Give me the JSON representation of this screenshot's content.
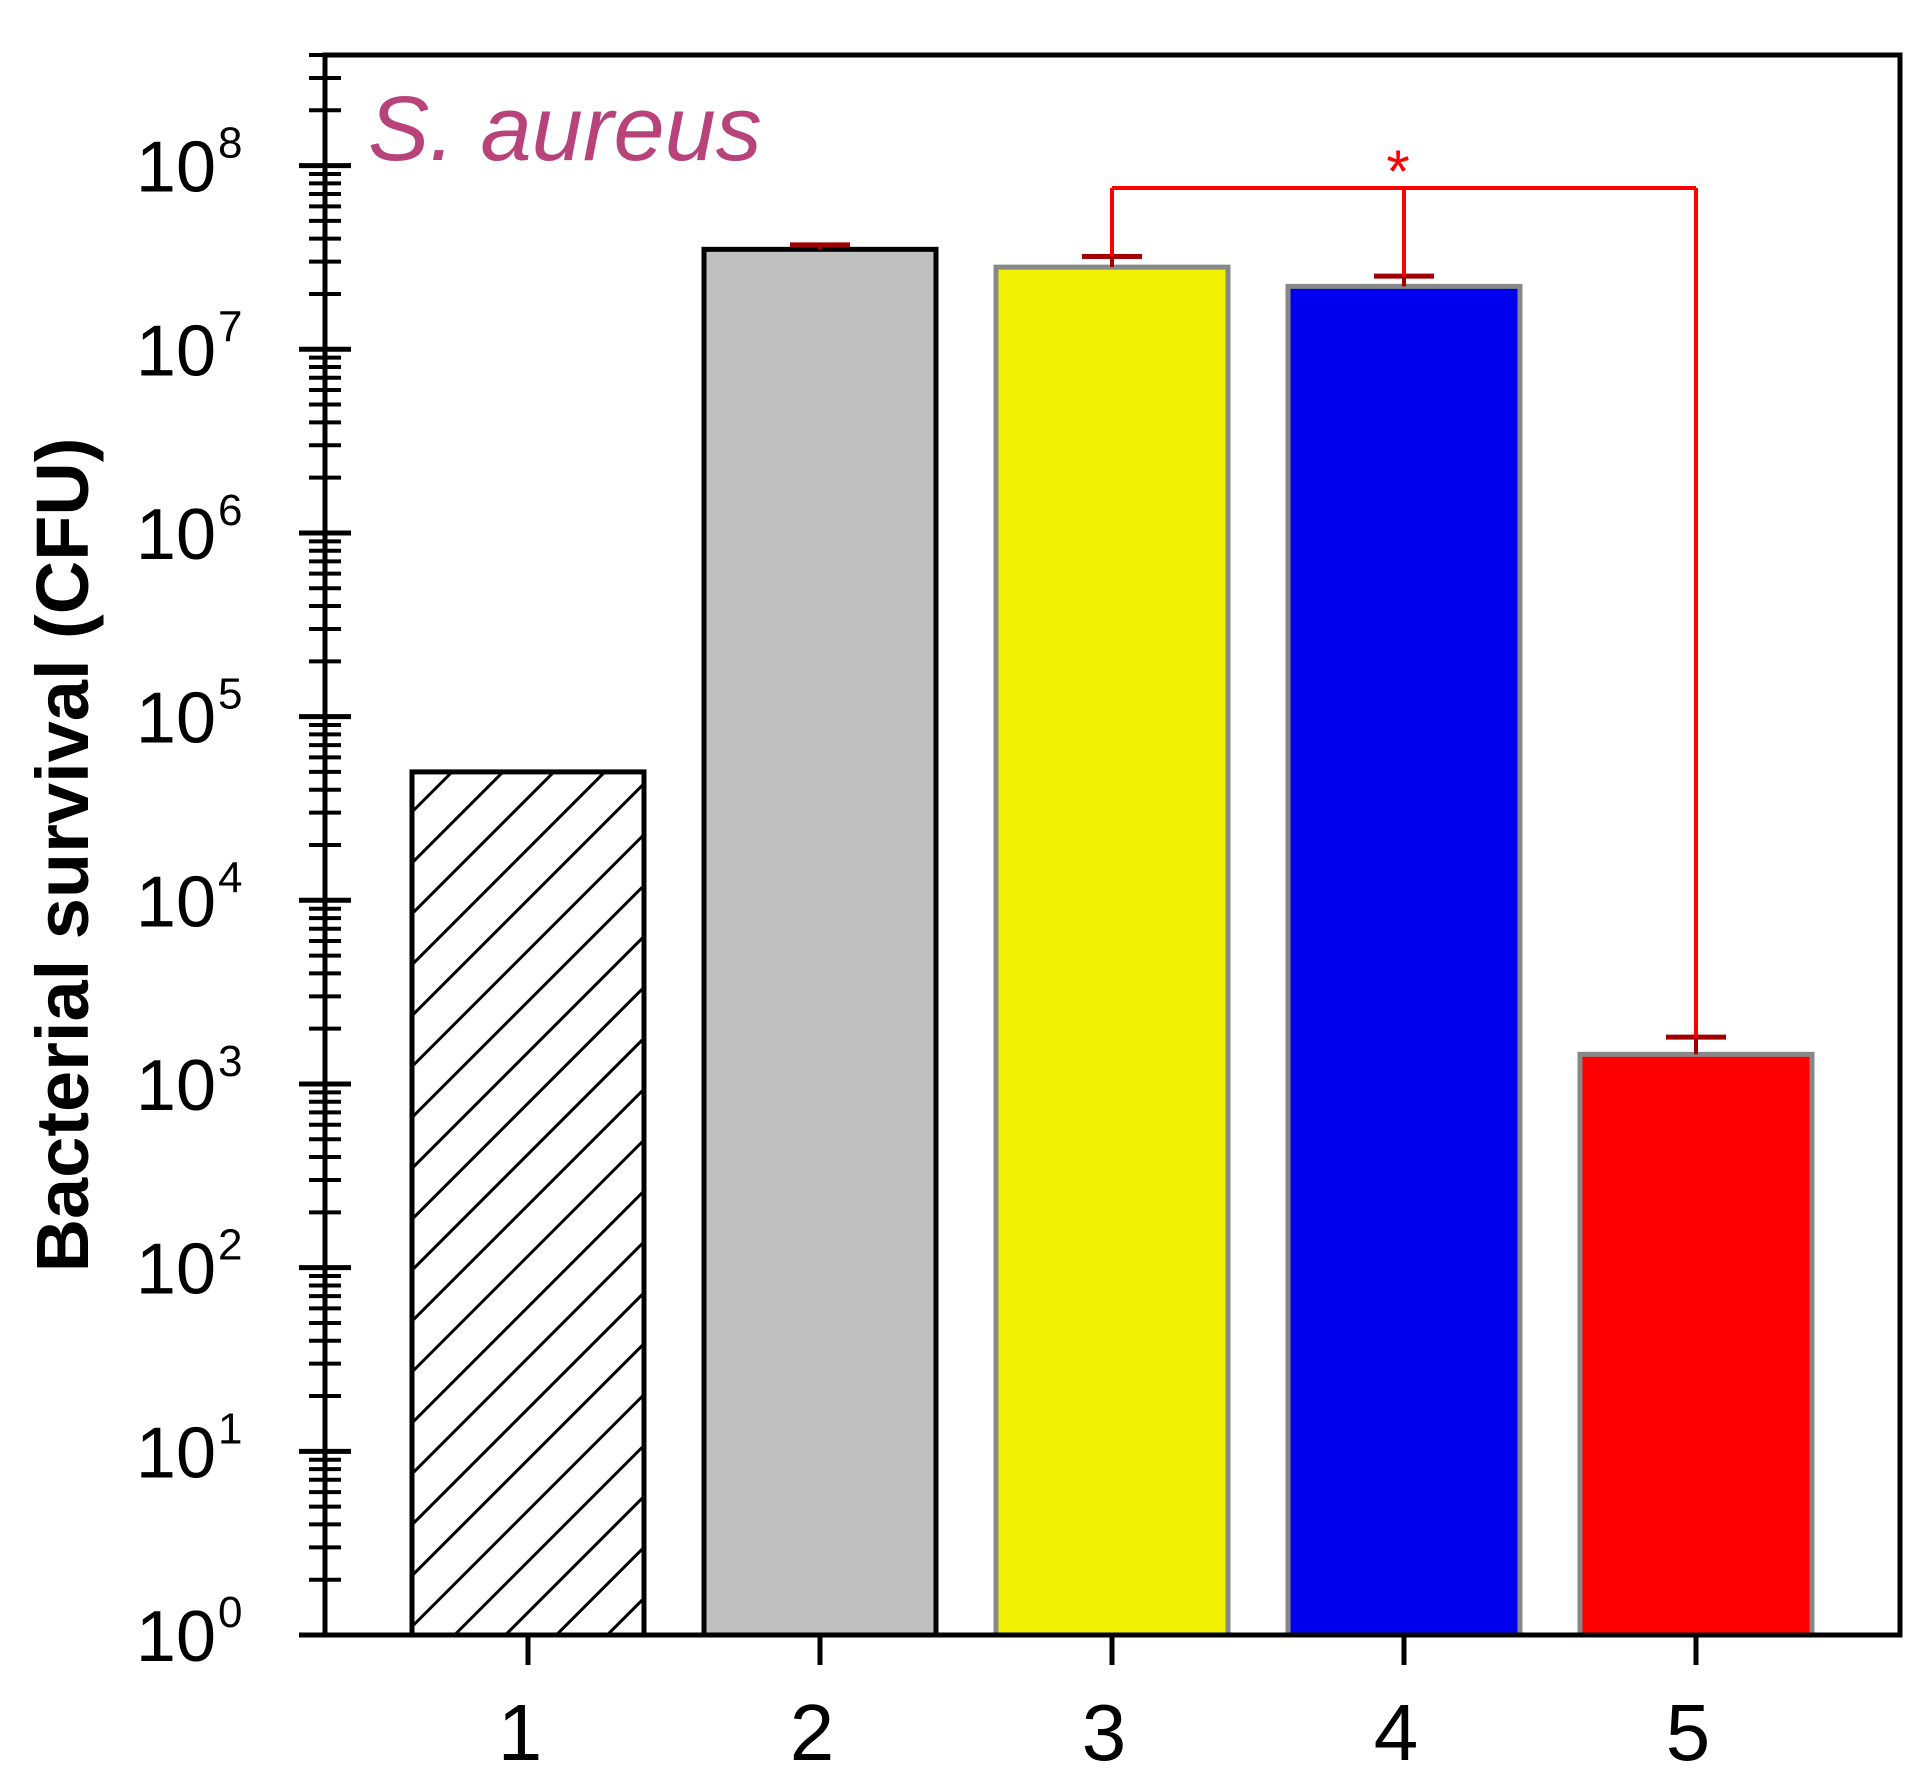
{
  "chart_data": {
    "type": "bar",
    "title": "",
    "xlabel": "",
    "ylabel": "Bacterial survival (CFU)",
    "yscale": "log",
    "ylim": [
      1,
      400000000
    ],
    "y_tick_base": "10",
    "y_tick_exponents": [
      "0",
      "1",
      "2",
      "3",
      "4",
      "5",
      "6",
      "7",
      "8"
    ],
    "categories": [
      "1",
      "2",
      "3",
      "4",
      "5"
    ],
    "values": [
      50000,
      35000000,
      28000000,
      22000000,
      1450
    ],
    "error_upper": [
      null,
      37000000,
      32000000,
      25000000,
      1800
    ],
    "bar_fills": [
      "hatch",
      "#c0c0c0",
      "#f0f000",
      "#0000f0",
      "#ff0000"
    ],
    "bar_edges": [
      "#000000",
      "#000000",
      "#888888",
      "#888888",
      "#888888"
    ],
    "error_color": "#a00000",
    "annotation": {
      "text": "S. aureus",
      "color": "#b8437a"
    },
    "significance": {
      "from": "3",
      "to": "5",
      "marker": "*",
      "color": "#ff0000"
    },
    "grid": false
  }
}
